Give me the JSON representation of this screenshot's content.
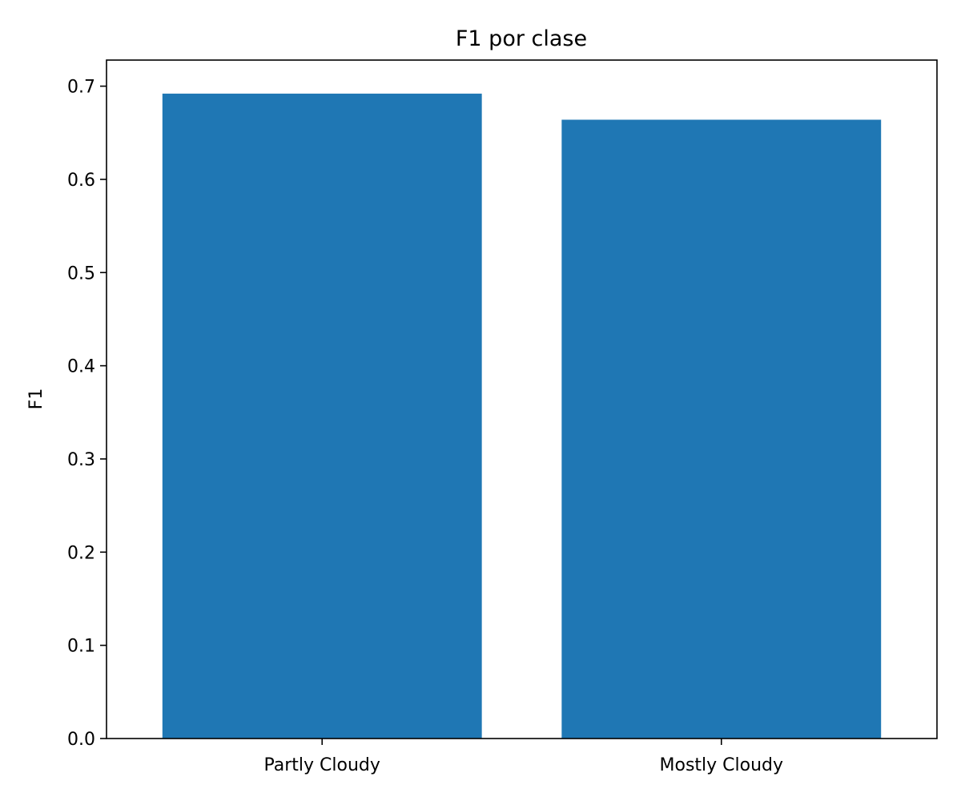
{
  "chart_data": {
    "type": "bar",
    "title": "F1 por clase",
    "xlabel": "",
    "ylabel": "F1",
    "categories": [
      "Partly Cloudy",
      "Mostly Cloudy"
    ],
    "values": [
      0.692,
      0.664
    ],
    "ylim": [
      0,
      0.728
    ],
    "yticks": [
      "0.0",
      "0.1",
      "0.2",
      "0.3",
      "0.4",
      "0.5",
      "0.6",
      "0.7"
    ],
    "grid": false,
    "bar_color": "#1f77b4"
  }
}
